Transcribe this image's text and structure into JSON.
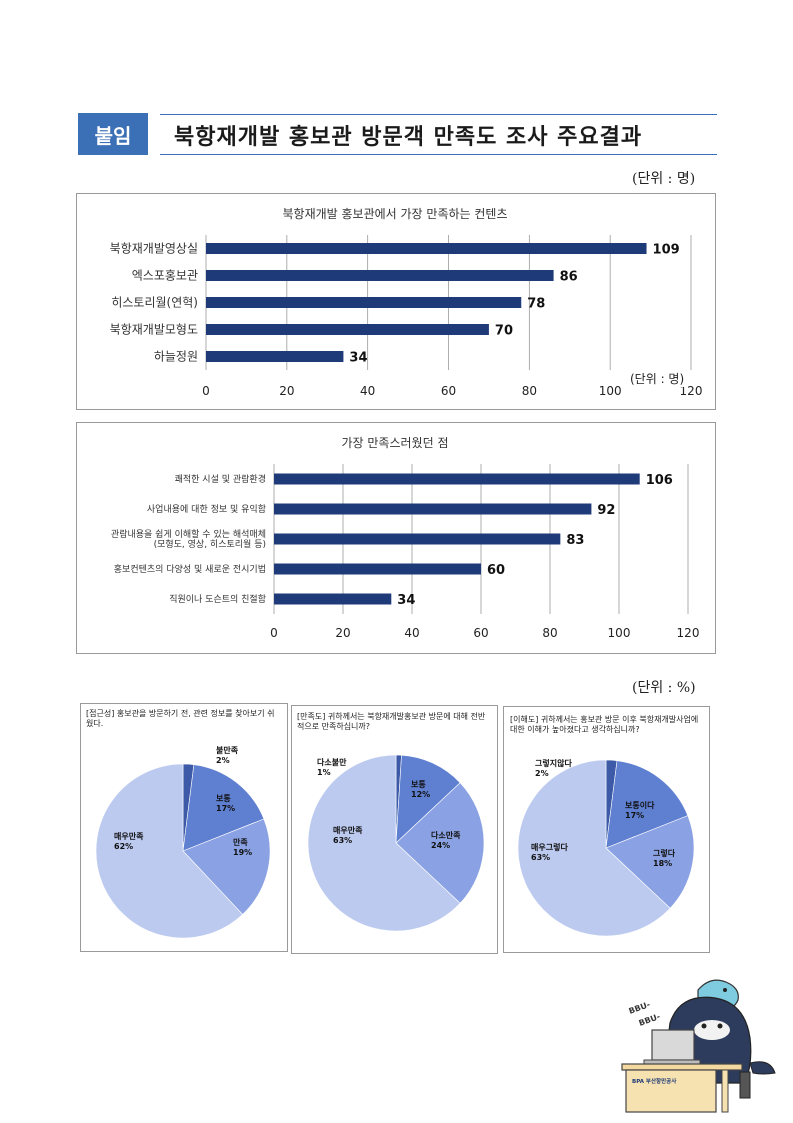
{
  "header": {
    "badge": "붙임",
    "title": "북항재개발 홍보관 방문객 만족도 조사 주요결과",
    "unit_people": "(단위 : 명)",
    "unit_percent": "(단위 : %)"
  },
  "chart_data": [
    {
      "type": "bar",
      "title": "북항재개발 홍보관에서 가장 만족하는 컨텐츠",
      "categories": [
        "북항재개발영상실",
        "엑스포홍보관",
        "히스토리월(연혁)",
        "북항재개발모형도",
        "하늘정원"
      ],
      "values": [
        109,
        86,
        78,
        70,
        34
      ],
      "xlim": [
        0,
        120
      ],
      "ticks": [
        "0",
        "20",
        "40",
        "60",
        "80",
        "100",
        "120"
      ],
      "unit_label": "(단위 : 명)",
      "bar_color": "#1f3a78"
    },
    {
      "type": "bar",
      "title": "가장 만족스러웠던 점",
      "categories": [
        "쾌적한 시설 및 관람환경",
        "사업내용에 대한 정보 및 유익함",
        "관람내용을 쉽게 이해할 수 있는 해석매체(모형도, 영상, 히스토리월 등)",
        "홍보컨텐츠의 다양성 및 새로운 전시기법",
        "직원이나 도슨트의 친절함"
      ],
      "values": [
        106,
        92,
        83,
        60,
        34
      ],
      "xlim": [
        0,
        120
      ],
      "ticks": [
        "0",
        "20",
        "40",
        "60",
        "80",
        "100",
        "120"
      ],
      "bar_color": "#1f3a78"
    },
    {
      "type": "pie",
      "title": "[접근성] 홍보관을 방문하기 전, 관련 정보를 찾아보기 쉬웠다.",
      "slices": [
        {
          "label": "불만족",
          "value": 2,
          "pct": "2%",
          "color": "#3d5aa8"
        },
        {
          "label": "보통",
          "value": 17,
          "pct": "17%",
          "color": "#5f7fd1"
        },
        {
          "label": "만족",
          "value": 19,
          "pct": "19%",
          "color": "#8aa2e3"
        },
        {
          "label": "매우만족",
          "value": 62,
          "pct": "62%",
          "color": "#bccaf0"
        }
      ]
    },
    {
      "type": "pie",
      "title": "[만족도] 귀하께서는 북항재개발홍보관 방문에 대해 전반적으로 만족하십니까?",
      "slices": [
        {
          "label": "다소불만",
          "value": 1,
          "pct": "1%",
          "color": "#3d5aa8"
        },
        {
          "label": "보통",
          "value": 12,
          "pct": "12%",
          "color": "#5f7fd1"
        },
        {
          "label": "다소만족",
          "value": 24,
          "pct": "24%",
          "color": "#8aa2e3"
        },
        {
          "label": "매우만족",
          "value": 63,
          "pct": "63%",
          "color": "#bccaf0"
        }
      ]
    },
    {
      "type": "pie",
      "title": "[이해도] 귀하께서는 홍보관 방문 이후 북항재개발사업에 대한 이해가 높아졌다고 생각하십니까?",
      "slices": [
        {
          "label": "그렇지않다",
          "value": 2,
          "pct": "2%",
          "color": "#3d5aa8"
        },
        {
          "label": "보통이다",
          "value": 17,
          "pct": "17%",
          "color": "#5f7fd1"
        },
        {
          "label": "그렇다",
          "value": 18,
          "pct": "18%",
          "color": "#8aa2e3"
        },
        {
          "label": "매우그렇다",
          "value": 63,
          "pct": "63%",
          "color": "#bccaf0"
        }
      ]
    }
  ],
  "mascot": {
    "sound": "BBU- BBU-",
    "sound1": "BBU-",
    "sound2": "BBU-",
    "desk_logo": "BPA 부산항만공사"
  }
}
